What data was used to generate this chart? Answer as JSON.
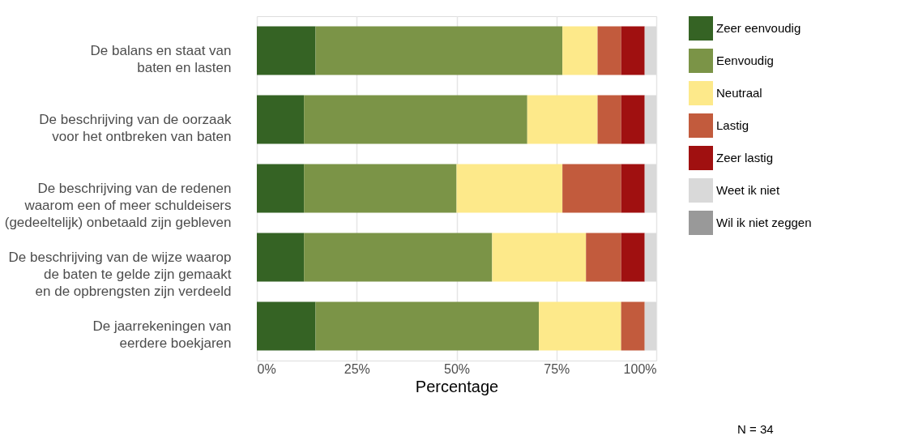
{
  "chart_data": {
    "type": "bar",
    "orientation": "horizontal",
    "stacked": true,
    "categories": [
      "De balans en staat van\nbaten en lasten",
      "De beschrijving van de oorzaak\nvoor het ontbreken van baten",
      "De beschrijving van de redenen\nwaarom een of meer schuldeisers\n(gedeeltelijk) onbetaald zijn gebleven",
      "De beschrijving van de wijze waarop\nde baten te gelde zijn gemaakt\nen de opbrengsten zijn verdeeld",
      "De jaarrekeningen van\neerdere boekjaren"
    ],
    "series": [
      {
        "name": "Zeer eenvoudig",
        "color": "#356324",
        "values": [
          14.7,
          11.8,
          11.8,
          11.8,
          14.7
        ]
      },
      {
        "name": "Eenvoudig",
        "color": "#7b9447",
        "values": [
          61.8,
          55.9,
          38.2,
          47.1,
          55.9
        ]
      },
      {
        "name": "Neutraal",
        "color": "#fde98a",
        "values": [
          8.8,
          17.6,
          26.5,
          23.5,
          20.6
        ]
      },
      {
        "name": "Lastig",
        "color": "#c25b3d",
        "values": [
          5.9,
          5.9,
          14.7,
          8.8,
          5.9
        ]
      },
      {
        "name": "Zeer lastig",
        "color": "#a01010",
        "values": [
          5.9,
          5.9,
          5.9,
          5.9,
          0
        ]
      },
      {
        "name": "Weet ik niet",
        "color": "#d9d9d9",
        "values": [
          2.9,
          2.9,
          2.9,
          2.9,
          2.9
        ]
      },
      {
        "name": "Wil ik niet zeggen",
        "color": "#999999",
        "values": [
          0,
          0,
          0,
          0,
          0
        ]
      }
    ],
    "xlim": [
      0,
      100
    ],
    "xticks": [
      {
        "value": 0,
        "label": "0%"
      },
      {
        "value": 25,
        "label": "25%"
      },
      {
        "value": 50,
        "label": "50%"
      },
      {
        "value": 75,
        "label": "75%"
      },
      {
        "value": 100,
        "label": "100%"
      }
    ],
    "xlabel": "Percentage",
    "grid": "x",
    "legend": "right",
    "annotations": [
      "N = 34"
    ]
  }
}
